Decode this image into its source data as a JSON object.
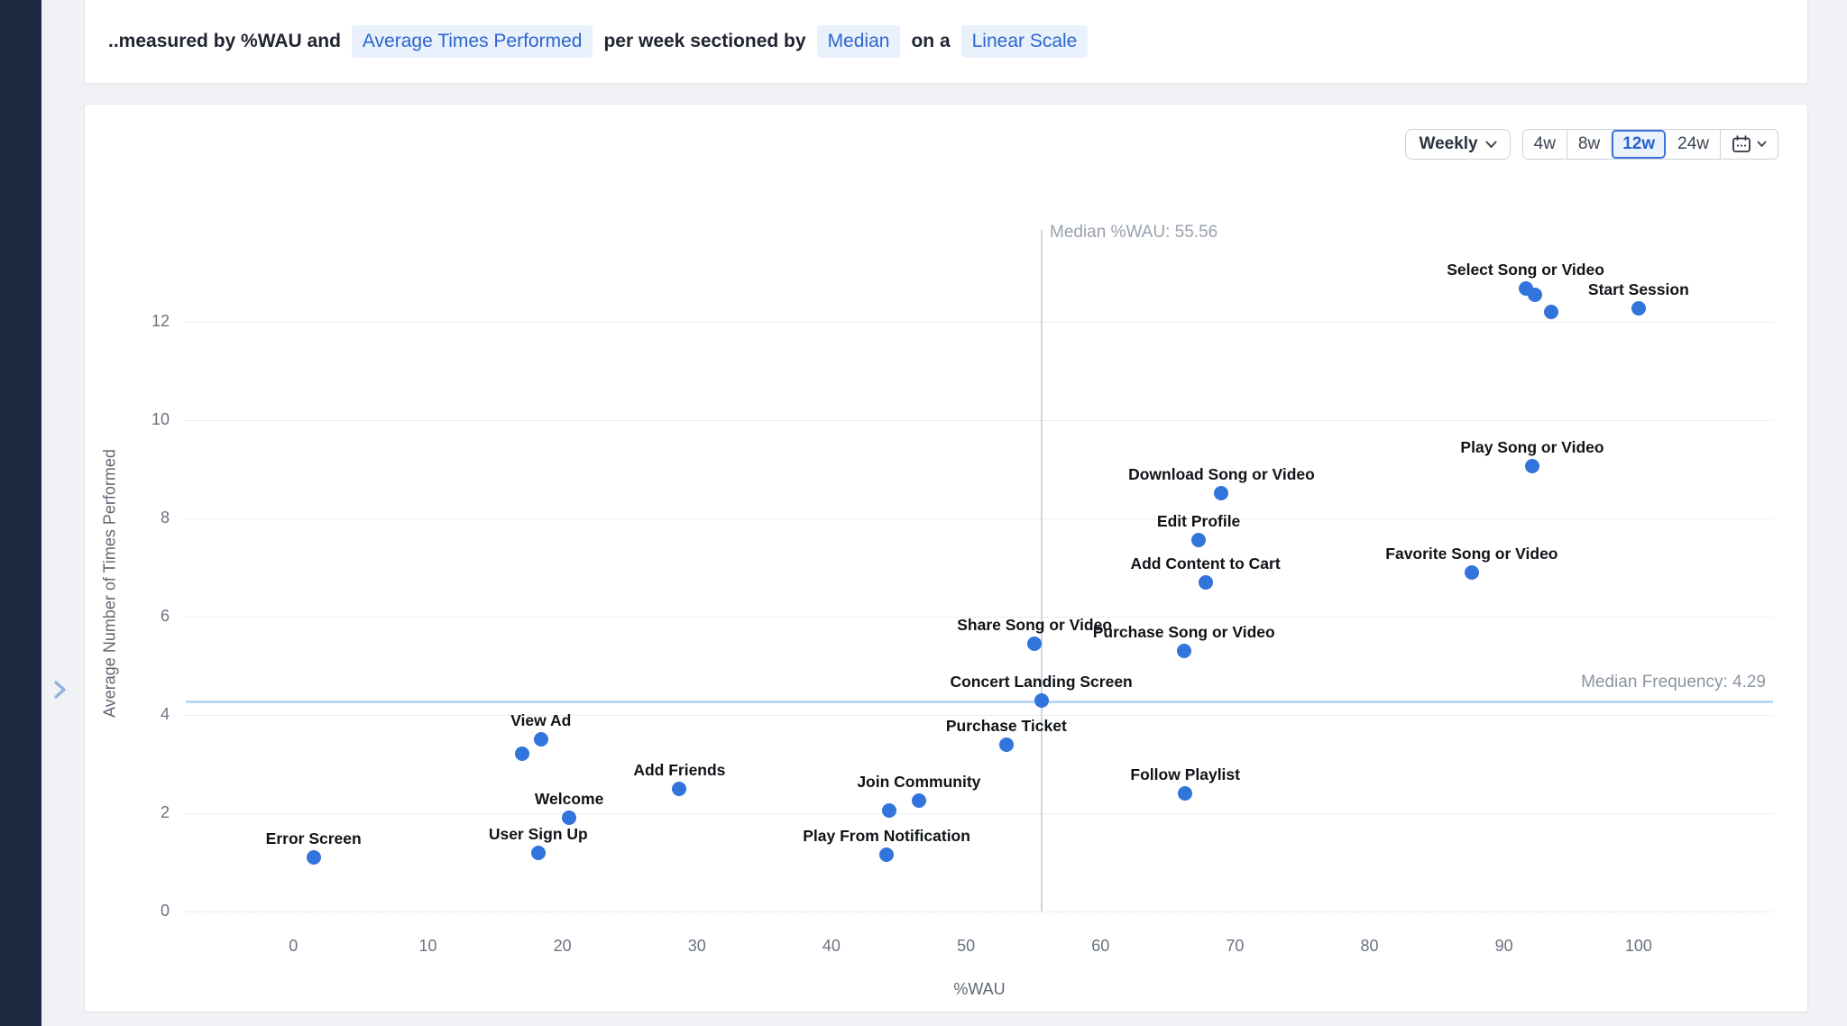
{
  "sentence": {
    "prefix": "..measured by %WAU and",
    "metric_pill": "Average Times Performed",
    "mid1": "per week sectioned by",
    "section_pill": "Median",
    "mid2": "on a",
    "scale_pill": "Linear Scale"
  },
  "controls": {
    "interval_label": "Weekly",
    "ranges": [
      "4w",
      "8w",
      "12w",
      "24w"
    ],
    "selected_range": "12w"
  },
  "chart_data": {
    "type": "scatter",
    "xlabel": "%WAU",
    "ylabel": "Average Number of Times Performed",
    "x_ticks": [
      0,
      10,
      20,
      30,
      40,
      50,
      60,
      70,
      80,
      90,
      100
    ],
    "y_ticks": [
      0,
      2,
      4,
      6,
      8,
      10,
      12
    ],
    "xlim": [
      -8,
      110
    ],
    "ylim": [
      0,
      13.35
    ],
    "grid": "horizontal-dotted",
    "median_x": {
      "value": 55.56,
      "label": "Median %WAU: 55.56"
    },
    "median_y": {
      "value": 4.29,
      "label": "Median Frequency: 4.29"
    },
    "point_color": "#3174db",
    "points": [
      {
        "label": "Error Screen",
        "x": 1.5,
        "y": 1.1
      },
      {
        "label": "User Sign Up",
        "x": 18.2,
        "y": 1.2
      },
      {
        "label": "Welcome",
        "x": 20.5,
        "y": 1.9
      },
      {
        "label": "View Ad",
        "x": 18.4,
        "y": 3.5
      },
      {
        "label": "",
        "x": 17.0,
        "y": 3.2
      },
      {
        "label": "Add Friends",
        "x": 28.7,
        "y": 2.5
      },
      {
        "label": "Play From Notification",
        "x": 44.1,
        "y": 1.15
      },
      {
        "label": "Join Community",
        "x": 46.5,
        "y": 2.25
      },
      {
        "label": "",
        "x": 44.3,
        "y": 2.05
      },
      {
        "label": "Purchase Ticket",
        "x": 53.0,
        "y": 3.4
      },
      {
        "label": "Concert Landing Screen",
        "x": 55.6,
        "y": 4.29
      },
      {
        "label": "Share Song or Video",
        "x": 55.1,
        "y": 5.45
      },
      {
        "label": "Purchase Song or Video",
        "x": 66.2,
        "y": 5.3
      },
      {
        "label": "Follow Playlist",
        "x": 66.3,
        "y": 2.4
      },
      {
        "label": "Add Content to Cart",
        "x": 67.8,
        "y": 6.7
      },
      {
        "label": "Edit Profile",
        "x": 67.3,
        "y": 7.55
      },
      {
        "label": "Download Song or Video",
        "x": 69.0,
        "y": 8.5
      },
      {
        "label": "Favorite Song or Video",
        "x": 87.6,
        "y": 6.9
      },
      {
        "label": "Play Song or Video",
        "x": 92.1,
        "y": 9.05
      },
      {
        "label": "Select Song or Video",
        "x": 91.6,
        "y": 12.68
      },
      {
        "label": "",
        "x": 92.3,
        "y": 12.55
      },
      {
        "label": "",
        "x": 93.5,
        "y": 12.2
      },
      {
        "label": "Start Session",
        "x": 100.0,
        "y": 12.27
      }
    ]
  }
}
